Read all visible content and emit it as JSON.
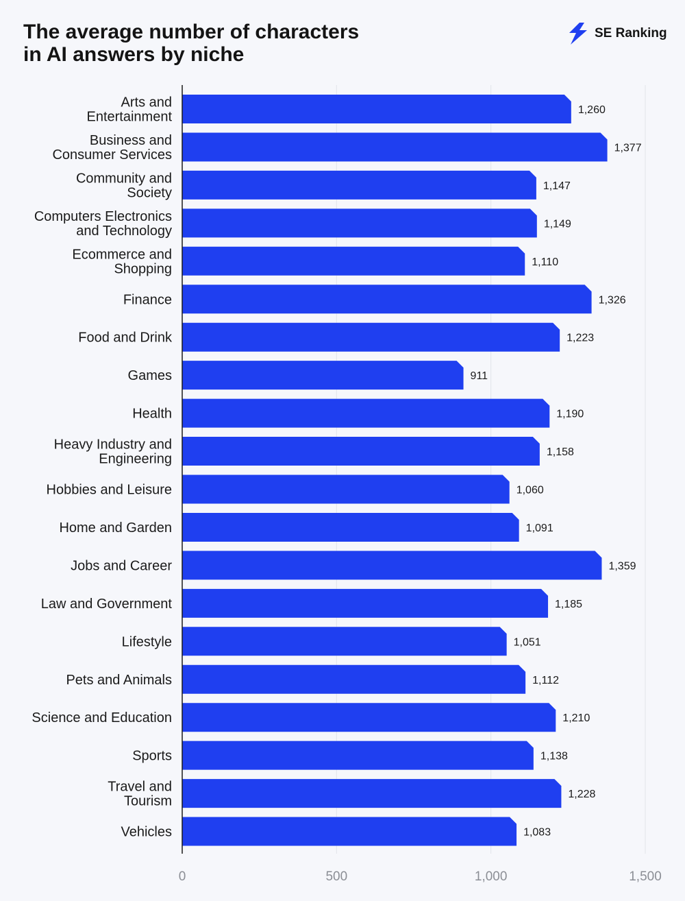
{
  "brand": {
    "name": "SE Ranking",
    "logo_icon": "lightning-logo-icon",
    "color": "#1f3ff0"
  },
  "chart_data": {
    "type": "bar",
    "orientation": "horizontal",
    "title_lines": [
      "The average number of characters",
      "in AI answers by niche"
    ],
    "categories": [
      [
        "Arts and",
        "Entertainment"
      ],
      [
        "Business and",
        "Consumer Services"
      ],
      [
        "Community and",
        "Society"
      ],
      [
        "Computers Electronics",
        "and Technology"
      ],
      [
        "Ecommerce and",
        "Shopping"
      ],
      [
        "Finance"
      ],
      [
        "Food and Drink"
      ],
      [
        "Games"
      ],
      [
        "Health"
      ],
      [
        "Heavy Industry and",
        "Engineering"
      ],
      [
        "Hobbies and Leisure"
      ],
      [
        "Home and Garden"
      ],
      [
        "Jobs and Career"
      ],
      [
        "Law and Government"
      ],
      [
        "Lifestyle"
      ],
      [
        "Pets and Animals"
      ],
      [
        "Science and Education"
      ],
      [
        "Sports"
      ],
      [
        "Travel and",
        "Tourism"
      ],
      [
        "Vehicles"
      ]
    ],
    "values": [
      1260,
      1377,
      1147,
      1149,
      1110,
      1326,
      1223,
      911,
      1190,
      1158,
      1060,
      1091,
      1359,
      1185,
      1051,
      1112,
      1210,
      1138,
      1228,
      1083
    ],
    "value_labels": [
      "1,260",
      "1,377",
      "1,147",
      "1,149",
      "1,110",
      "1,326",
      "1,223",
      "911",
      "1,190",
      "1,158",
      "1,060",
      "1,091",
      "1,359",
      "1,185",
      "1,051",
      "1,112",
      "1,210",
      "1,138",
      "1,228",
      "1,083"
    ],
    "xticks": [
      0,
      500,
      1000,
      1500
    ],
    "xtick_labels": [
      "0",
      "500",
      "1,000",
      "1,500"
    ],
    "xlim": [
      0,
      1500
    ],
    "grid": "vertical",
    "bar_color": "#1f3ff0",
    "grid_color": "#e2e4ea",
    "axis_color": "#1a1a1a"
  }
}
